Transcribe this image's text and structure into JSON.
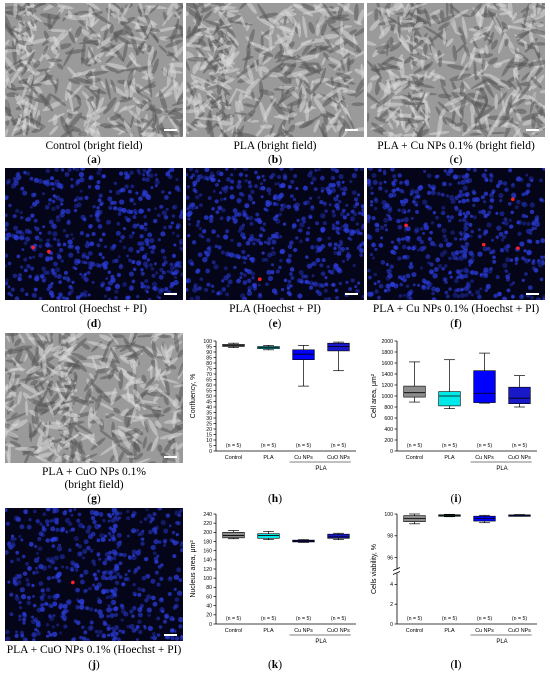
{
  "captions": {
    "a": "Control (bright field)",
    "b": "PLA (bright field)",
    "c": "PLA + Cu NPs 0.1% (bright field)",
    "d": "Control (Hoechst + PI)",
    "e": "PLA (Hoechst + PI)",
    "f": "PLA + Cu NPs 0.1% (Hoechst + PI)",
    "g1": "PLA + CuO NPs 0.1%",
    "g2": "(bright field)",
    "j": "PLA + CuO NPs 0.1% (Hoechst + PI)"
  },
  "labels": {
    "a": "a",
    "b": "b",
    "c": "c",
    "d": "d",
    "e": "e",
    "f": "f",
    "g": "g",
    "h": "h",
    "i": "i",
    "j": "j",
    "k": "k",
    "l": "l"
  },
  "colors": {
    "gray": "#8c8c8c",
    "cyan": "#00e8e8",
    "blue": "#0000ff",
    "darkblue": "#1818c8",
    "nuclei": "#2a3cd8",
    "pi": "#ff2020"
  },
  "chart_data": [
    {
      "id": "h",
      "type": "box",
      "ylabel": "Confluency, %",
      "ylim": [
        0,
        100
      ],
      "yticks": [
        0,
        5,
        10,
        15,
        20,
        25,
        30,
        35,
        40,
        45,
        50,
        55,
        60,
        65,
        70,
        75,
        80,
        85,
        90,
        95,
        100
      ],
      "categories": [
        "Control",
        "PLA",
        "Cu NPs",
        "CuO NPs"
      ],
      "group_label": "PLA",
      "n_labels": [
        "(n = 5)",
        "(n = 5)",
        "(n = 5)",
        "(n = 5)"
      ],
      "boxes": [
        {
          "min": 94,
          "q1": 95,
          "median": 96,
          "q3": 97,
          "max": 98,
          "color": "#8c8c8c"
        },
        {
          "min": 92,
          "q1": 93,
          "median": 94,
          "q3": 95,
          "max": 96,
          "color": "#00e8e8"
        },
        {
          "min": 59,
          "q1": 83,
          "median": 88,
          "q3": 92,
          "max": 96,
          "color": "#0000ff"
        },
        {
          "min": 73,
          "q1": 91,
          "median": 95,
          "q3": 98,
          "max": 99,
          "color": "#1818c8"
        }
      ]
    },
    {
      "id": "i",
      "type": "box",
      "ylabel": "Cell area, μm²",
      "ylim": [
        0,
        2000
      ],
      "yticks": [
        0,
        200,
        400,
        600,
        800,
        1000,
        1200,
        1400,
        1600,
        1800,
        2000
      ],
      "categories": [
        "Control",
        "PLA",
        "Cu NPs",
        "CuO NPs"
      ],
      "group_label": "PLA",
      "n_labels": [
        "(n = 5)",
        "(n = 5)",
        "(n = 5)",
        "(n = 5)"
      ],
      "boxes": [
        {
          "min": 890,
          "q1": 980,
          "median": 1060,
          "q3": 1180,
          "max": 1620,
          "color": "#8c8c8c"
        },
        {
          "min": 770,
          "q1": 820,
          "median": 1000,
          "q3": 1080,
          "max": 1660,
          "color": "#00e8e8"
        },
        {
          "min": 870,
          "q1": 880,
          "median": 1050,
          "q3": 1460,
          "max": 1780,
          "color": "#0000ff"
        },
        {
          "min": 800,
          "q1": 860,
          "median": 960,
          "q3": 1160,
          "max": 1370,
          "color": "#1818c8"
        }
      ]
    },
    {
      "id": "k",
      "type": "box",
      "ylabel": "Nucleus area, μm²",
      "ylim": [
        0,
        240
      ],
      "yticks": [
        0,
        20,
        40,
        60,
        80,
        100,
        120,
        140,
        160,
        180,
        200,
        220,
        240
      ],
      "categories": [
        "Control",
        "PLA",
        "Cu NPs",
        "CuO NPs"
      ],
      "group_label": "PLA",
      "n_labels": [
        "(n = 5)",
        "(n = 5)",
        "(n = 5)",
        "(n = 5)"
      ],
      "boxes": [
        {
          "min": 186,
          "q1": 188,
          "median": 193,
          "q3": 200,
          "max": 204,
          "color": "#8c8c8c"
        },
        {
          "min": 184,
          "q1": 187,
          "median": 193,
          "q3": 197,
          "max": 202,
          "color": "#00e8e8"
        },
        {
          "min": 178,
          "q1": 179,
          "median": 181,
          "q3": 183,
          "max": 184,
          "color": "#0000ff"
        },
        {
          "min": 184,
          "q1": 187,
          "median": 190,
          "q3": 196,
          "max": 198,
          "color": "#1818c8"
        }
      ]
    },
    {
      "id": "l",
      "type": "box",
      "ylabel": "Cells viability, %",
      "ylim": [
        0,
        100
      ],
      "axis_break": [
        5,
        95
      ],
      "yticks": [
        0,
        2,
        4,
        96,
        98,
        100
      ],
      "categories": [
        "Control",
        "PLA",
        "Cu NPs",
        "CuO NPs"
      ],
      "group_label": "PLA",
      "n_labels": [
        "(n = 5)",
        "(n = 5)",
        "(n = 5)",
        "(n = 5)"
      ],
      "boxes": [
        {
          "min": 99.1,
          "q1": 99.3,
          "median": 99.6,
          "q3": 99.85,
          "max": 100,
          "color": "#8c8c8c"
        },
        {
          "min": 99.75,
          "q1": 99.8,
          "median": 99.87,
          "q3": 99.93,
          "max": 99.97,
          "color": "#00e8e8"
        },
        {
          "min": 99.2,
          "q1": 99.35,
          "median": 99.6,
          "q3": 99.8,
          "max": 99.88,
          "color": "#0000ff"
        },
        {
          "min": 99.8,
          "q1": 99.84,
          "median": 99.88,
          "q3": 99.92,
          "max": 99.95,
          "color": "#1818c8"
        }
      ]
    }
  ]
}
